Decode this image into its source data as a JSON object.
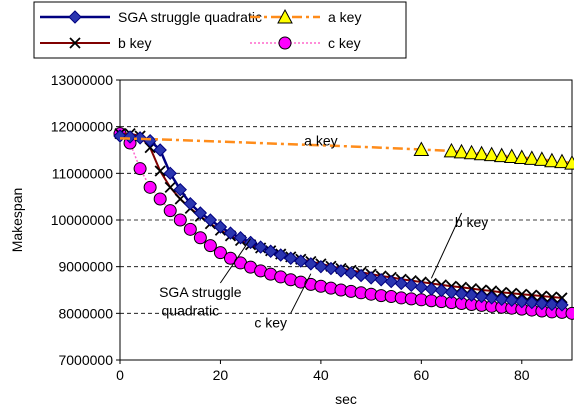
{
  "chart_data": {
    "type": "line",
    "title": "",
    "xlabel": "sec",
    "ylabel": "Makespan",
    "xlim": [
      0,
      90
    ],
    "ylim": [
      7000000,
      13000000
    ],
    "x_ticks": [
      "0",
      "20",
      "40",
      "60",
      "80"
    ],
    "y_ticks": [
      "7000000",
      "8000000",
      "9000000",
      "10000000",
      "11000000",
      "12000000",
      "13000000"
    ],
    "grid": "horizontal dashed",
    "legend_position": "top",
    "series": [
      {
        "name": "SGA struggle quadratic",
        "color": "#000080",
        "marker": "diamond",
        "marker_fill": "#2a35b0",
        "x": [
          0,
          2,
          4,
          6,
          8,
          10,
          12,
          14,
          16,
          18,
          20,
          22,
          24,
          26,
          28,
          30,
          32,
          34,
          36,
          38,
          40,
          42,
          44,
          46,
          48,
          50,
          52,
          54,
          56,
          58,
          60,
          62,
          64,
          66,
          68,
          70,
          72,
          74,
          76,
          78,
          80,
          82,
          84,
          86,
          88
        ],
        "y": [
          11800000,
          11780000,
          11760000,
          11700000,
          11500000,
          11000000,
          10650000,
          10350000,
          10150000,
          10000000,
          9850000,
          9720000,
          9620000,
          9520000,
          9420000,
          9330000,
          9250000,
          9180000,
          9120000,
          9060000,
          9000000,
          8960000,
          8910000,
          8860000,
          8810000,
          8760000,
          8720000,
          8680000,
          8640000,
          8600000,
          8560000,
          8520000,
          8490000,
          8450000,
          8420000,
          8390000,
          8360000,
          8330000,
          8300000,
          8280000,
          8250000,
          8230000,
          8210000,
          8190000,
          8180000
        ]
      },
      {
        "name": "a key",
        "color": "#ff8c1a",
        "marker": "triangle",
        "marker_fill": "#ffff00",
        "x": [
          0,
          10,
          20,
          30,
          40,
          50,
          60,
          66,
          68,
          70,
          72,
          74,
          76,
          78,
          80,
          82,
          84,
          86,
          88,
          90
        ],
        "y": [
          11750000,
          11720000,
          11680000,
          11640000,
          11600000,
          11560000,
          11510000,
          11480000,
          11460000,
          11440000,
          11420000,
          11400000,
          11380000,
          11360000,
          11340000,
          11320000,
          11300000,
          11270000,
          11250000,
          11220000
        ]
      },
      {
        "name": "b key",
        "color": "#800000",
        "marker": "x",
        "marker_fill": "#000000",
        "x": [
          0,
          2,
          4,
          6,
          8,
          10,
          12,
          14,
          16,
          18,
          20,
          22,
          24,
          26,
          28,
          30,
          32,
          34,
          36,
          38,
          40,
          42,
          44,
          46,
          48,
          50,
          52,
          54,
          56,
          58,
          60,
          62,
          64,
          66,
          68,
          70,
          72,
          74,
          76,
          78,
          80,
          82,
          84,
          86,
          88
        ],
        "y": [
          11850000,
          11850000,
          11800000,
          11550000,
          11050000,
          10700000,
          10450000,
          10250000,
          10080000,
          9920000,
          9780000,
          9660000,
          9560000,
          9470000,
          9400000,
          9340000,
          9270000,
          9210000,
          9160000,
          9110000,
          9060000,
          9010000,
          8960000,
          8920000,
          8880000,
          8840000,
          8800000,
          8770000,
          8730000,
          8700000,
          8670000,
          8640000,
          8610000,
          8580000,
          8560000,
          8530000,
          8500000,
          8480000,
          8450000,
          8430000,
          8410000,
          8390000,
          8370000,
          8350000,
          8330000
        ]
      },
      {
        "name": "c key",
        "color": "#ff66cc",
        "marker": "circle",
        "marker_fill": "#ff00ff",
        "x": [
          0,
          2,
          4,
          6,
          8,
          10,
          12,
          14,
          16,
          18,
          20,
          22,
          24,
          26,
          28,
          30,
          32,
          34,
          36,
          38,
          40,
          42,
          44,
          46,
          48,
          50,
          52,
          54,
          56,
          58,
          60,
          62,
          64,
          66,
          68,
          70,
          72,
          74,
          76,
          78,
          80,
          82,
          84,
          86,
          88,
          90
        ],
        "y": [
          11850000,
          11650000,
          11100000,
          10700000,
          10450000,
          10200000,
          10000000,
          9800000,
          9620000,
          9450000,
          9300000,
          9180000,
          9080000,
          8990000,
          8910000,
          8840000,
          8780000,
          8720000,
          8670000,
          8620000,
          8580000,
          8540000,
          8500000,
          8470000,
          8440000,
          8410000,
          8380000,
          8360000,
          8330000,
          8310000,
          8290000,
          8270000,
          8250000,
          8230000,
          8210000,
          8190000,
          8170000,
          8150000,
          8130000,
          8110000,
          8090000,
          8070000,
          8050000,
          8030000,
          8020000,
          8000000
        ]
      }
    ],
    "annotations": [
      {
        "text": "a key",
        "at": [
          40,
          11600000
        ],
        "pointer": false
      },
      {
        "text": "b key",
        "at": [
          70,
          9850000
        ],
        "pointer": true,
        "target": [
          62,
          8750000
        ]
      },
      {
        "text": "SGA struggle",
        "at": [
          16,
          8350000
        ],
        "pointer": true,
        "target": [
          26,
          9600000
        ]
      },
      {
        "text": "quadratic",
        "at": [
          14,
          7950000
        ],
        "pointer": false
      },
      {
        "text": "c key",
        "at": [
          30,
          7700000
        ],
        "pointer": true,
        "target": [
          38,
          8850000
        ]
      }
    ]
  }
}
